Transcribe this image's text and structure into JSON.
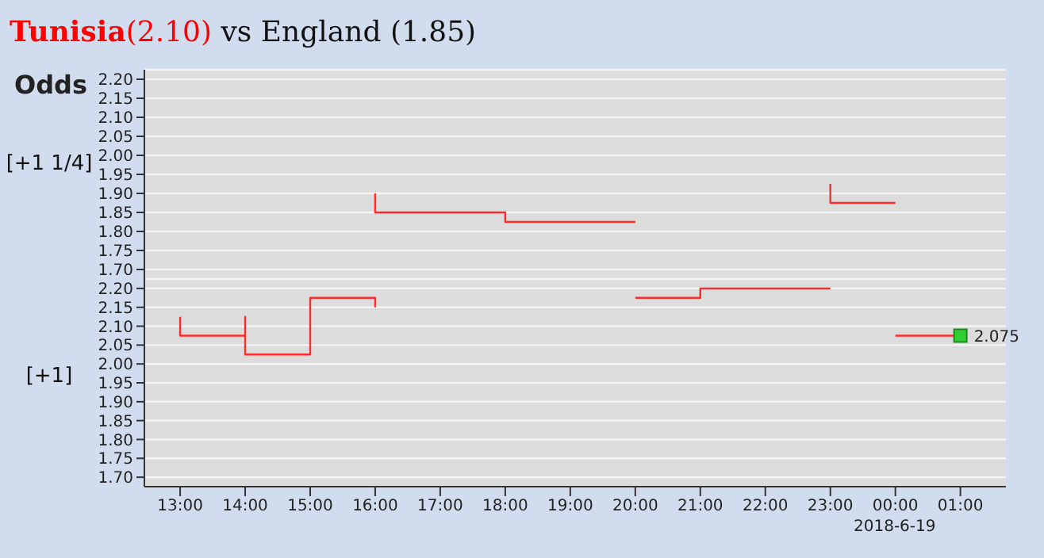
{
  "chart_data": [
    {
      "type": "step",
      "title": "Tunisia(2.10) vs England (1.85)",
      "annotations": [
        "Odds"
      ],
      "ylabel": "[+1 1/4]",
      "xlim": [
        "2018-06-18T12:27",
        "2018-06-19T01:42"
      ],
      "ylim": [
        1.675,
        2.225
      ],
      "yticks": [
        {
          "value": 1.7,
          "label": "1.70"
        },
        1.75,
        {
          "value": 1.8,
          "label": "1.80"
        },
        1.85,
        {
          "value": 1.9,
          "label": "1.90"
        },
        1.95,
        {
          "value": 2.0,
          "label": "2.00"
        },
        2.05,
        {
          "value": 2.1,
          "label": "2.10"
        },
        2.15,
        {
          "value": 2.2,
          "label": "2.20"
        }
      ],
      "grid": "y",
      "tick_labels": "y",
      "series": [
        {
          "color": "#ff2a2a",
          "x": [
            "2018-06-18T16:00",
            "2018-06-18T16:00",
            "2018-06-18T18:00",
            "2018-06-18T18:00",
            "2018-06-18T20:00",
            "2018-06-18T21:00",
            "2018-06-18T23:00",
            "2018-06-18T23:00",
            "2018-06-19T00:00"
          ],
          "values": [
            1.9,
            1.85,
            1.85,
            1.825,
            1.825,
            null,
            1.925,
            1.875,
            1.875
          ]
        }
      ]
    },
    {
      "type": "step",
      "annotations": [
        "2018-6-19"
      ],
      "ylabel": "[+1]",
      "xlim": [
        "2018-06-18T12:27",
        "2018-06-19T01:42"
      ],
      "ylim": [
        1.675,
        2.225
      ],
      "yticks": [
        {
          "value": 1.7,
          "label": "1.70"
        },
        1.75,
        {
          "value": 1.8,
          "label": "1.80"
        },
        1.85,
        {
          "value": 1.9,
          "label": "1.90"
        },
        1.95,
        {
          "value": 2.0,
          "label": "2.00"
        },
        2.05,
        {
          "value": 2.1,
          "label": "2.10"
        },
        2.15,
        {
          "value": 2.2,
          "label": "2.20"
        }
      ],
      "grid": "y",
      "xticks": [
        {
          "value": "2018-06-18T13:00",
          "label": "13:00"
        },
        {
          "value": "2018-06-18T14:00",
          "label": "14:00"
        },
        {
          "value": "2018-06-18T15:00",
          "label": "15:00"
        },
        {
          "value": "2018-06-18T16:00",
          "label": "16:00"
        },
        {
          "value": "2018-06-18T17:00",
          "label": "17:00"
        },
        {
          "value": "2018-06-18T18:00",
          "label": "18:00"
        },
        {
          "value": "2018-06-18T19:00",
          "label": "19:00"
        },
        {
          "value": "2018-06-18T20:00",
          "label": "20:00"
        },
        {
          "value": "2018-06-18T21:00",
          "label": "21:00"
        },
        {
          "value": "2018-06-18T22:00",
          "label": "22:00"
        },
        {
          "value": "2018-06-18T23:00",
          "label": "23:00"
        },
        {
          "value": "2018-06-19T00:00",
          "label": "00:00"
        },
        {
          "value": "2018-06-19T01:00",
          "label": "01:00"
        }
      ],
      "series": [
        {
          "color": "#ff2a2a",
          "x": [
            "2018-06-18T13:00",
            "2018-06-18T13:00",
            "2018-06-18T14:00",
            "2018-06-18T14:00",
            "2018-06-18T14:00",
            "2018-06-18T15:00",
            "2018-06-18T15:00",
            "2018-06-18T16:00",
            "2018-06-18T16:00",
            "2018-06-18T18:00",
            "2018-06-18T20:00",
            "2018-06-18T21:00",
            "2018-06-18T21:00",
            "2018-06-18T23:00",
            "2018-06-18T23:30",
            "2018-06-19T00:00",
            "2018-06-19T01:00"
          ],
          "values": [
            2.125,
            2.075,
            2.075,
            2.125,
            2.025,
            2.025,
            2.175,
            2.175,
            2.15,
            null,
            2.175,
            2.175,
            2.2,
            2.2,
            null,
            2.075,
            2.075
          ]
        },
        {
          "type": "scatter",
          "marker": "square",
          "color": "#33cc33",
          "x": [
            "2018-06-19T01:00"
          ],
          "values": [
            2.075
          ],
          "value_labels": [
            "2.075"
          ]
        }
      ]
    }
  ]
}
